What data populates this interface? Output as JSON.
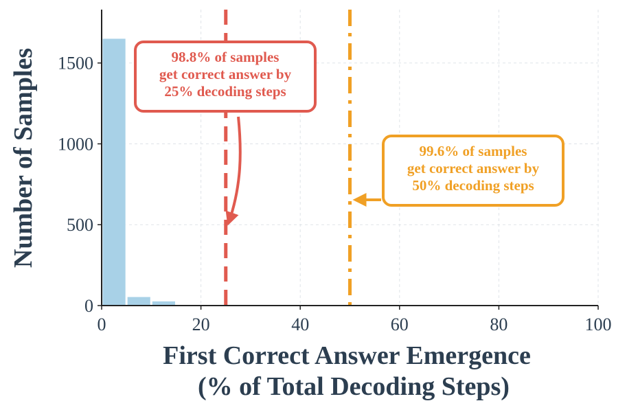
{
  "chart_data": {
    "type": "bar",
    "xlabel": "First Correct Answer Emergence",
    "xlabel_line2": "(% of Total Decoding Steps)",
    "ylabel": "Number of Samples",
    "xlim": [
      0,
      100
    ],
    "ylim": [
      0,
      1830
    ],
    "xticks": [
      0,
      20,
      40,
      60,
      80,
      100
    ],
    "yticks": [
      0,
      500,
      1000,
      1500
    ],
    "grid": true,
    "bar_color": "#a8d1e7",
    "bins": [
      {
        "x0": 0,
        "x1": 5,
        "value": 1652
      },
      {
        "x0": 5,
        "x1": 10,
        "value": 55
      },
      {
        "x0": 10,
        "x1": 15,
        "value": 28
      }
    ],
    "reference_lines": [
      {
        "x": 25,
        "style": "dashed",
        "color": "#e05a4f"
      },
      {
        "x": 50,
        "style": "dashdot",
        "color": "#f0a025"
      }
    ],
    "annotations": [
      {
        "lines": [
          "98.8% of samples",
          "get correct answer by",
          "25% decoding steps"
        ],
        "color": "#e05a4f",
        "target_x": 25,
        "target_y": 510
      },
      {
        "lines": [
          "99.6% of samples",
          "get correct answer by",
          "50% decoding steps"
        ],
        "color": "#f0a025",
        "target_x": 50,
        "target_y": 650
      }
    ]
  }
}
